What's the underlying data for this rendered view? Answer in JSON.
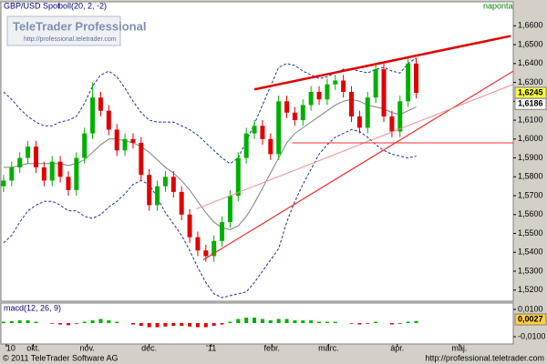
{
  "chart_data": {
    "type": "candlestick",
    "title": "GBP/USD Spot",
    "indicator": "boll(20, 2, -2)",
    "period": "naponta",
    "logo": {
      "name": "TeleTrader Professional",
      "url": "http://professional.teletrader.com"
    },
    "footer": {
      "copyright": "© 2011 TeleTrader Software AG",
      "url": "http://professional.teletrader.com"
    },
    "x": [
      1,
      4,
      7,
      10,
      13,
      16,
      19,
      22,
      25,
      28,
      31,
      34,
      37,
      40,
      43,
      46,
      49,
      52,
      55,
      58,
      61,
      64,
      67,
      70,
      73,
      76,
      79,
      82,
      85,
      88,
      91,
      94,
      97,
      100,
      103,
      106,
      109,
      112,
      115,
      118,
      121,
      124,
      127,
      130,
      133,
      136,
      139,
      142,
      145,
      148,
      151,
      154
    ],
    "xlim": [
      0,
      190
    ],
    "xticks": [
      {
        "value": 2,
        "label": "10"
      },
      {
        "value": 12,
        "label": "okt."
      },
      {
        "value": 32,
        "label": "nov."
      },
      {
        "value": 55,
        "label": "dec."
      },
      {
        "value": 78,
        "label": "'11"
      },
      {
        "value": 100.5,
        "label": "febr."
      },
      {
        "value": 121.5,
        "label": "márc."
      },
      {
        "value": 147,
        "label": "ápr."
      },
      {
        "value": 170,
        "label": "máj."
      }
    ],
    "open": [
      1.575,
      1.578,
      1.585,
      1.59,
      1.596,
      1.585,
      1.578,
      1.588,
      1.58,
      1.573,
      1.59,
      1.603,
      1.622,
      1.615,
      1.605,
      1.594,
      1.6,
      1.598,
      1.581,
      1.565,
      1.575,
      1.58,
      1.572,
      1.56,
      1.548,
      1.541,
      1.538,
      1.546,
      1.556,
      1.57,
      1.59,
      1.603,
      1.607,
      1.6,
      1.592,
      1.62,
      1.614,
      1.61,
      1.618,
      1.625,
      1.621,
      1.629,
      1.631,
      1.625,
      1.612,
      1.606,
      1.622,
      1.637,
      1.612,
      1.604,
      1.62,
      1.64
    ],
    "high": [
      1.581,
      1.588,
      1.593,
      1.599,
      1.599,
      1.588,
      1.591,
      1.591,
      1.583,
      1.593,
      1.606,
      1.63,
      1.625,
      1.618,
      1.608,
      1.603,
      1.603,
      1.601,
      1.584,
      1.578,
      1.583,
      1.583,
      1.575,
      1.563,
      1.551,
      1.544,
      1.549,
      1.559,
      1.573,
      1.593,
      1.606,
      1.61,
      1.61,
      1.603,
      1.623,
      1.623,
      1.617,
      1.621,
      1.628,
      1.628,
      1.632,
      1.634,
      1.634,
      1.628,
      1.615,
      1.625,
      1.64,
      1.64,
      1.615,
      1.623,
      1.644,
      1.643
    ],
    "low": [
      1.572,
      1.575,
      1.582,
      1.587,
      1.582,
      1.575,
      1.575,
      1.577,
      1.57,
      1.57,
      1.587,
      1.6,
      1.612,
      1.602,
      1.591,
      1.591,
      1.595,
      1.578,
      1.562,
      1.562,
      1.572,
      1.569,
      1.557,
      1.545,
      1.538,
      1.535,
      1.535,
      1.543,
      1.553,
      1.567,
      1.587,
      1.6,
      1.597,
      1.589,
      1.589,
      1.611,
      1.607,
      1.607,
      1.615,
      1.618,
      1.618,
      1.626,
      1.622,
      1.609,
      1.603,
      1.603,
      1.619,
      1.609,
      1.601,
      1.601,
      1.617,
      1.6215
    ],
    "close": [
      1.578,
      1.585,
      1.59,
      1.596,
      1.585,
      1.578,
      1.588,
      1.58,
      1.573,
      1.59,
      1.603,
      1.622,
      1.615,
      1.605,
      1.594,
      1.6,
      1.598,
      1.581,
      1.565,
      1.575,
      1.58,
      1.572,
      1.56,
      1.548,
      1.541,
      1.538,
      1.546,
      1.556,
      1.57,
      1.59,
      1.603,
      1.607,
      1.6,
      1.592,
      1.62,
      1.614,
      1.61,
      1.618,
      1.625,
      1.621,
      1.629,
      1.631,
      1.625,
      1.612,
      1.606,
      1.622,
      1.637,
      1.612,
      1.604,
      1.62,
      1.64,
      1.6245
    ],
    "up_color": "#00b000",
    "down_color": "#e00000",
    "series": [
      {
        "name": "middle",
        "color": "#808080",
        "dash": false,
        "values": [
          1.585,
          1.585,
          1.586,
          1.587,
          1.587,
          1.587,
          1.587,
          1.587,
          1.586,
          1.587,
          1.589,
          1.593,
          1.597,
          1.6,
          1.6,
          1.599,
          1.598,
          1.596,
          1.593,
          1.589,
          1.585,
          1.582,
          1.578,
          1.573,
          1.567,
          1.561,
          1.556,
          1.553,
          1.552,
          1.554,
          1.559,
          1.566,
          1.574,
          1.582,
          1.59,
          1.598,
          1.603,
          1.606,
          1.609,
          1.612,
          1.615,
          1.618,
          1.62,
          1.621,
          1.62,
          1.618,
          1.617,
          1.616,
          1.614,
          1.613,
          1.615,
          1.617
        ]
      },
      {
        "name": "upper",
        "color": "#2030a0",
        "dash": true,
        "values": [
          1.625,
          1.621,
          1.616,
          1.612,
          1.609,
          1.607,
          1.607,
          1.609,
          1.61,
          1.612,
          1.619,
          1.628,
          1.634,
          1.636,
          1.633,
          1.627,
          1.62,
          1.614,
          1.61,
          1.609,
          1.609,
          1.609,
          1.607,
          1.605,
          1.602,
          1.598,
          1.594,
          1.59,
          1.587,
          1.59,
          1.599,
          1.608,
          1.618,
          1.628,
          1.638,
          1.64,
          1.639,
          1.636,
          1.634,
          1.632,
          1.633,
          1.635,
          1.637,
          1.637,
          1.636,
          1.635,
          1.637,
          1.638,
          1.636,
          1.635,
          1.64,
          1.643
        ]
      },
      {
        "name": "lower",
        "color": "#2030a0",
        "dash": true,
        "values": [
          1.545,
          1.549,
          1.556,
          1.562,
          1.565,
          1.567,
          1.567,
          1.565,
          1.562,
          1.562,
          1.559,
          1.558,
          1.56,
          1.564,
          1.567,
          1.571,
          1.576,
          1.578,
          1.576,
          1.569,
          1.561,
          1.555,
          1.549,
          1.541,
          1.532,
          1.524,
          1.518,
          1.516,
          1.517,
          1.518,
          1.519,
          1.524,
          1.53,
          1.536,
          1.542,
          1.556,
          1.567,
          1.576,
          1.584,
          1.592,
          1.597,
          1.601,
          1.603,
          1.605,
          1.604,
          1.601,
          1.597,
          1.594,
          1.592,
          1.591,
          1.59,
          1.591
        ]
      }
    ],
    "trend_lines": [
      {
        "x": [
          94,
          189
        ],
        "y": [
          1.6263,
          1.6546
        ],
        "color": "#e00000",
        "width": 2.5
      },
      {
        "x": [
          75,
          190
        ],
        "y": [
          1.536,
          1.636
        ],
        "color": "#f03030",
        "width": 1.2
      },
      {
        "x": [
          72.5,
          190
        ],
        "y": [
          1.563,
          1.629
        ],
        "color": "#f09090",
        "width": 1
      },
      {
        "x": [
          108,
          190
        ],
        "y": [
          1.598,
          1.598
        ],
        "color": "#f03030",
        "width": 1
      }
    ],
    "ylim": [
      1.5141,
      1.6727
    ],
    "yticks": [
      {
        "value": 1.52,
        "label": "1,5200"
      },
      {
        "value": 1.53,
        "label": "1,5300"
      },
      {
        "value": 1.54,
        "label": "1,5400"
      },
      {
        "value": 1.55,
        "label": "1,5500"
      },
      {
        "value": 1.56,
        "label": "1,5600"
      },
      {
        "value": 1.57,
        "label": "1,5700"
      },
      {
        "value": 1.58,
        "label": "1,5800"
      },
      {
        "value": 1.59,
        "label": "1,5900"
      },
      {
        "value": 1.6,
        "label": "1,6000"
      },
      {
        "value": 1.61,
        "label": "1,6100"
      },
      {
        "value": 1.62,
        "label": "1,6200"
      },
      {
        "value": 1.63,
        "label": "1,6300"
      },
      {
        "value": 1.64,
        "label": "1,6400"
      },
      {
        "value": 1.65,
        "label": "1,6500"
      },
      {
        "value": 1.66,
        "label": "1,6600"
      }
    ],
    "price_markers": [
      {
        "value": 1.6245,
        "label": "1,6245",
        "color": "#ffff40"
      },
      {
        "value": 1.6186,
        "label": "1,6186",
        "color": "#ffffff"
      }
    ],
    "macd": {
      "title": "macd(12, 26, 9)",
      "ylim": [
        -0.0153,
        0.0147
      ],
      "yticks": [
        {
          "value": 0.01,
          "label": "0,0100"
        },
        {
          "value": -0.01,
          "label": "-0,0100"
        }
      ],
      "histogram": [
        0.001,
        0.0015,
        0.002,
        0.002,
        0.001,
        0,
        -0.0005,
        -0.001,
        -0.0015,
        -0.0005,
        0.001,
        0.002,
        0.003,
        0.002,
        0.001,
        0,
        -0.001,
        -0.002,
        -0.003,
        -0.003,
        -0.0025,
        -0.002,
        -0.002,
        -0.0025,
        -0.003,
        -0.003,
        -0.002,
        -0.001,
        0.001,
        0.003,
        0.004,
        0.004,
        0.003,
        0.002,
        0.003,
        0.003,
        0.002,
        0.002,
        0.002,
        0.001,
        0.001,
        0.001,
        0,
        -0.0005,
        -0.001,
        -0.0005,
        0.001,
        0,
        -0.001,
        -0.0005,
        0.001,
        0.0015
      ],
      "up_color": "#00b000",
      "down_color": "#e00000",
      "marker": {
        "value": 0.0027,
        "label": "0,0027",
        "color": "#ffd040"
      }
    }
  }
}
